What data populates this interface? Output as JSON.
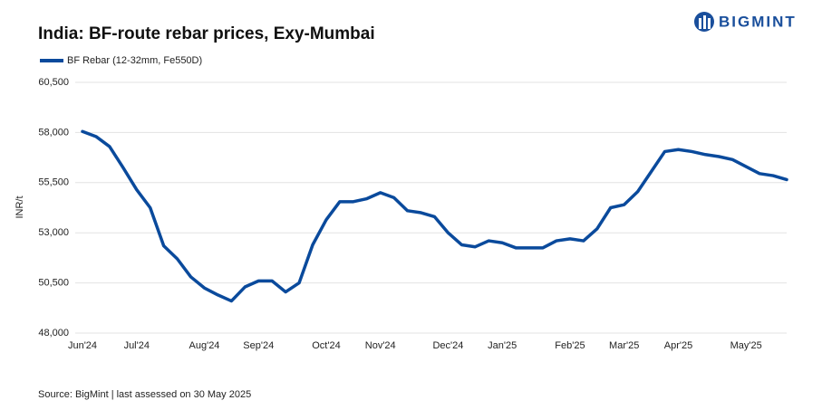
{
  "chart_data": {
    "type": "line",
    "title": "India: BF-route rebar prices, Exy-Mumbai",
    "brand": "BIGMINT",
    "y_label": "INR/t",
    "source": "Source: BigMint | last assessed on 30 May 2025",
    "categories": [
      "Jun'24",
      null,
      null,
      null,
      "Jul'24",
      null,
      null,
      null,
      null,
      "Aug'24",
      null,
      null,
      null,
      "Sep'24",
      null,
      null,
      null,
      null,
      "Oct'24",
      null,
      null,
      null,
      "Nov'24",
      null,
      null,
      null,
      null,
      "Dec'24",
      null,
      null,
      null,
      "Jan'25",
      null,
      null,
      null,
      null,
      "Feb'25",
      null,
      null,
      null,
      "Mar'25",
      null,
      null,
      null,
      "Apr'25",
      null,
      null,
      null,
      null,
      "May'25",
      null,
      null,
      null
    ],
    "series": [
      {
        "name": "BF Rebar (12-32mm, Fe550D)",
        "color": "#0a4a9c",
        "values": [
          58050,
          57800,
          57300,
          56250,
          55150,
          54250,
          52350,
          51700,
          50800,
          50250,
          49900,
          49600,
          50300,
          50600,
          50600,
          50050,
          50500,
          52400,
          53650,
          54550,
          54550,
          54700,
          55000,
          54750,
          54100,
          54000,
          53800,
          53000,
          52400,
          52300,
          52600,
          52500,
          52250,
          52250,
          52250,
          52600,
          52700,
          52600,
          53200,
          54250,
          54400,
          55050,
          56050,
          57050,
          57150,
          57050,
          56900,
          56800,
          56650,
          56300,
          55950,
          55850,
          55650
        ]
      }
    ],
    "ylim": [
      48000,
      60500
    ],
    "yticks": [
      {
        "value": 48000,
        "label": "48,000"
      },
      {
        "value": 50500,
        "label": "50,500"
      },
      {
        "value": 53000,
        "label": "53,000"
      },
      {
        "value": 55500,
        "label": "55,500"
      },
      {
        "value": 58000,
        "label": "58,000"
      },
      {
        "value": 60500,
        "label": "60,500"
      }
    ],
    "grid": true
  }
}
